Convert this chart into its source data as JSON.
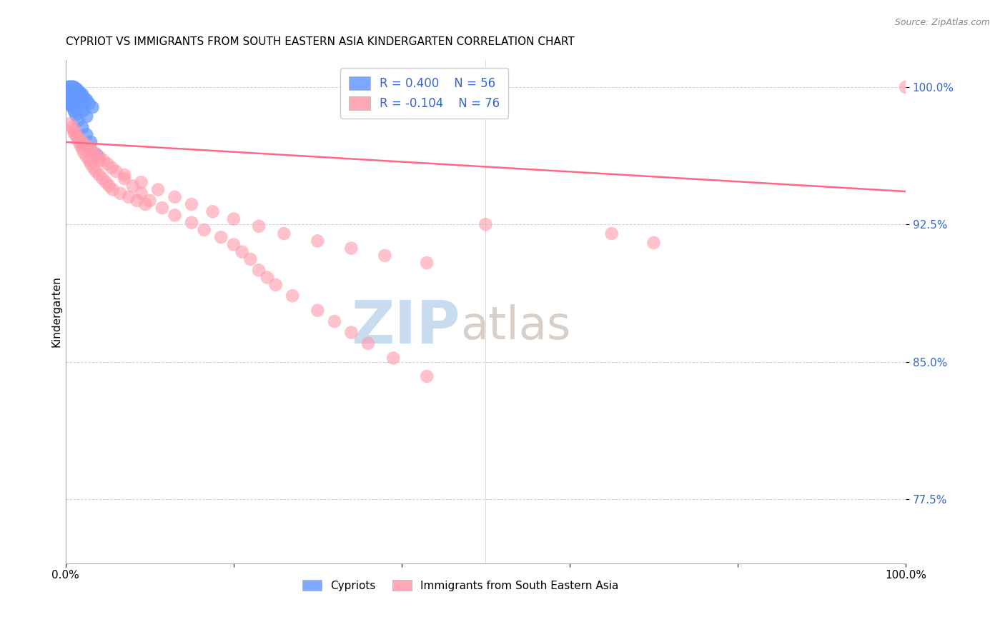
{
  "title": "CYPRIOT VS IMMIGRANTS FROM SOUTH EASTERN ASIA KINDERGARTEN CORRELATION CHART",
  "source": "Source: ZipAtlas.com",
  "ylabel": "Kindergarten",
  "xlim": [
    0.0,
    1.0
  ],
  "ylim": [
    0.74,
    1.015
  ],
  "yticks": [
    0.775,
    0.85,
    0.925,
    1.0
  ],
  "ytick_labels": [
    "77.5%",
    "85.0%",
    "92.5%",
    "100.0%"
  ],
  "xticks": [
    0.0,
    0.2,
    0.4,
    0.6,
    0.8,
    1.0
  ],
  "xtick_labels": [
    "0.0%",
    "",
    "",
    "",
    "",
    "100.0%"
  ],
  "legend_blue_r": "R = 0.400",
  "legend_blue_n": "N = 56",
  "legend_pink_r": "R = -0.104",
  "legend_pink_n": "N = 76",
  "blue_color": "#6699ff",
  "pink_color": "#ff99aa",
  "trendline_color": "#ff6688",
  "watermark_zip_color": "#c8dcf0",
  "watermark_atlas_color": "#d8cfc8",
  "blue_x": [
    0.003,
    0.004,
    0.005,
    0.005,
    0.006,
    0.006,
    0.007,
    0.007,
    0.008,
    0.008,
    0.009,
    0.009,
    0.01,
    0.01,
    0.011,
    0.011,
    0.012,
    0.012,
    0.013,
    0.014,
    0.015,
    0.016,
    0.017,
    0.018,
    0.02,
    0.022,
    0.025,
    0.028,
    0.032,
    0.003,
    0.004,
    0.005,
    0.006,
    0.007,
    0.008,
    0.009,
    0.01,
    0.011,
    0.012,
    0.013,
    0.015,
    0.018,
    0.021,
    0.025,
    0.004,
    0.005,
    0.006,
    0.007,
    0.008,
    0.01,
    0.012,
    0.015,
    0.02,
    0.025,
    0.03,
    0.037
  ],
  "blue_y": [
    1.0,
    1.0,
    1.0,
    0.999,
    1.0,
    0.998,
    1.0,
    0.999,
    1.0,
    0.998,
    1.0,
    0.999,
    1.0,
    0.999,
    0.999,
    0.998,
    0.999,
    0.998,
    0.999,
    0.998,
    0.998,
    0.997,
    0.997,
    0.996,
    0.996,
    0.994,
    0.993,
    0.991,
    0.989,
    0.997,
    0.997,
    0.996,
    0.996,
    0.995,
    0.995,
    0.994,
    0.994,
    0.993,
    0.993,
    0.992,
    0.991,
    0.989,
    0.987,
    0.984,
    0.993,
    0.992,
    0.991,
    0.99,
    0.989,
    0.987,
    0.985,
    0.982,
    0.978,
    0.974,
    0.97,
    0.963
  ],
  "pink_x": [
    0.005,
    0.008,
    0.01,
    0.012,
    0.014,
    0.016,
    0.018,
    0.02,
    0.022,
    0.025,
    0.028,
    0.03,
    0.033,
    0.036,
    0.04,
    0.044,
    0.048,
    0.052,
    0.056,
    0.065,
    0.075,
    0.085,
    0.095,
    0.01,
    0.015,
    0.02,
    0.025,
    0.03,
    0.035,
    0.04,
    0.045,
    0.05,
    0.06,
    0.07,
    0.08,
    0.09,
    0.1,
    0.115,
    0.13,
    0.15,
    0.165,
    0.185,
    0.2,
    0.21,
    0.22,
    0.23,
    0.24,
    0.25,
    0.27,
    0.3,
    0.32,
    0.34,
    0.36,
    0.39,
    0.43,
    0.02,
    0.03,
    0.04,
    0.055,
    0.07,
    0.09,
    0.11,
    0.13,
    0.15,
    0.175,
    0.2,
    0.23,
    0.26,
    0.3,
    0.34,
    0.38,
    0.43,
    0.5,
    0.65,
    0.7,
    1.0
  ],
  "pink_y": [
    0.98,
    0.978,
    0.976,
    0.974,
    0.972,
    0.97,
    0.968,
    0.966,
    0.964,
    0.962,
    0.96,
    0.958,
    0.956,
    0.954,
    0.952,
    0.95,
    0.948,
    0.946,
    0.944,
    0.942,
    0.94,
    0.938,
    0.936,
    0.975,
    0.972,
    0.97,
    0.968,
    0.966,
    0.964,
    0.962,
    0.96,
    0.958,
    0.954,
    0.95,
    0.946,
    0.942,
    0.938,
    0.934,
    0.93,
    0.926,
    0.922,
    0.918,
    0.914,
    0.91,
    0.906,
    0.9,
    0.896,
    0.892,
    0.886,
    0.878,
    0.872,
    0.866,
    0.86,
    0.852,
    0.842,
    0.97,
    0.965,
    0.96,
    0.956,
    0.952,
    0.948,
    0.944,
    0.94,
    0.936,
    0.932,
    0.928,
    0.924,
    0.92,
    0.916,
    0.912,
    0.908,
    0.904,
    0.925,
    0.92,
    0.915,
    1.0
  ],
  "trendline_x": [
    0.0,
    1.0
  ],
  "trendline_y_start": 0.97,
  "trendline_y_end": 0.943,
  "background_color": "#ffffff",
  "grid_color": "#cccccc"
}
